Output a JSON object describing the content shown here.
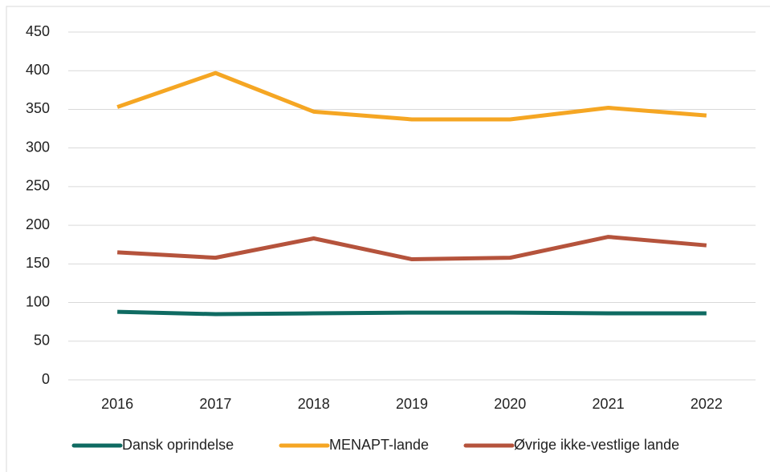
{
  "chart_data": {
    "type": "line",
    "categories": [
      "2016",
      "2017",
      "2018",
      "2019",
      "2020",
      "2021",
      "2022"
    ],
    "series": [
      {
        "name": "Dansk oprindelse",
        "color": "#0f6b62",
        "values": [
          88,
          85,
          86,
          87,
          87,
          86,
          86
        ]
      },
      {
        "name": "MENAPT-lande",
        "color": "#f5a623",
        "values": [
          353,
          397,
          347,
          337,
          337,
          352,
          342
        ]
      },
      {
        "name": "Øvrige ikke-vestlige lande",
        "color": "#b5533c",
        "values": [
          165,
          158,
          183,
          156,
          158,
          185,
          174
        ]
      }
    ],
    "ylim": [
      0,
      450
    ],
    "yticks": [
      0,
      50,
      100,
      150,
      200,
      250,
      300,
      350,
      400,
      450
    ],
    "grid": true,
    "legend": "bottom"
  }
}
